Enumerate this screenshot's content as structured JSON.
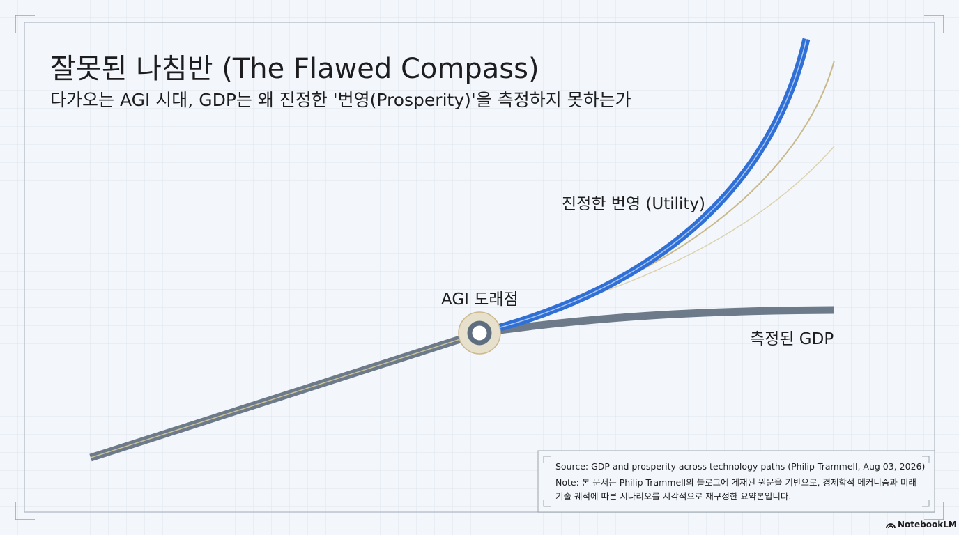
{
  "header": {
    "title": "잘못된 나침반 (The Flawed Compass)",
    "subtitle": "다가오는 AGI 시대, GDP는 왜 진정한 '번영(Prosperity)'을 측정하지 못하는가"
  },
  "labels": {
    "utility": "진정한 번영 (Utility)",
    "agi_point": "AGI 도래점",
    "gdp": "측정된 GDP"
  },
  "footnote": {
    "source": "Source: GDP and prosperity across technology paths (Philip Trammell, Aug 03, 2026)",
    "note": "Note: 본 문서는 Philip Trammell의 블로그에 게재된 원문을 기반으로, 경제학적 메커니즘과 미래 기술 궤적에 따른 시나리오를 시각적으로 재구성한 요약본입니다."
  },
  "brand": "NotebookLM"
}
